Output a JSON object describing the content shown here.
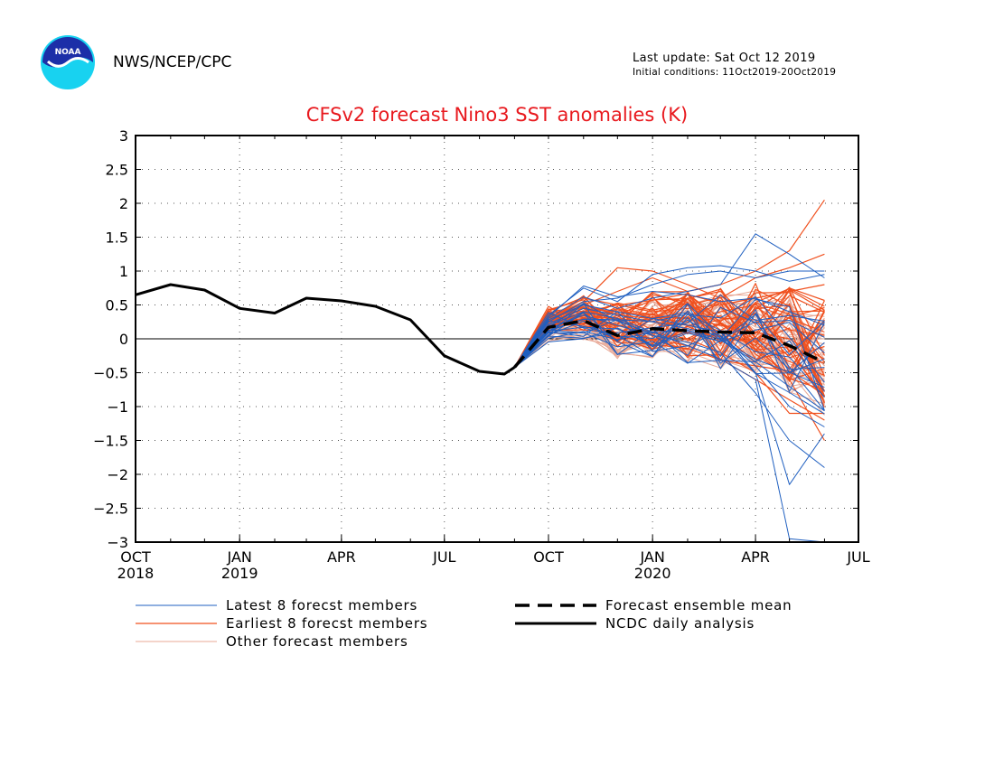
{
  "header": {
    "org": "NWS/NCEP/CPC",
    "logo_text": "NOAA",
    "last_update": "Last update: Sat Oct 12 2019",
    "initial_conditions": "Initial conditions: 11Oct2019-20Oct2019"
  },
  "colors": {
    "latest": "#1f5fc0",
    "earliest": "#f0501e",
    "other": "#e8a896",
    "mean": "#000000",
    "analysis": "#000000",
    "title": "#e8191e"
  },
  "chart_data": {
    "type": "line",
    "title": "CFSv2 forecast Nino3 SST anomalies (K)",
    "xlabel": "",
    "ylabel": "",
    "ylim": [
      -3,
      3
    ],
    "yticks": [
      3,
      2.5,
      2,
      1.5,
      1,
      0.5,
      0,
      -0.5,
      -1,
      -1.5,
      -2,
      -2.5,
      -3
    ],
    "ytick_labels": [
      "3",
      "2.5",
      "2",
      "1.5",
      "1",
      "0.5",
      "0",
      "−0.5",
      "−1",
      "−1.5",
      "−2",
      "−2.5",
      "−3"
    ],
    "xaxis": {
      "start": "2018-10-01",
      "end": "2020-07-01",
      "ticks": [
        {
          "month": "OCT",
          "year": "2018",
          "date": "2018-10-01"
        },
        {
          "month": "JAN",
          "year": "2019",
          "date": "2019-01-01"
        },
        {
          "month": "APR",
          "year": "",
          "date": "2019-04-01"
        },
        {
          "month": "JUL",
          "year": "",
          "date": "2019-07-01"
        },
        {
          "month": "OCT",
          "year": "",
          "date": "2019-10-01"
        },
        {
          "month": "JAN",
          "year": "2020",
          "date": "2020-01-01"
        },
        {
          "month": "APR",
          "year": "",
          "date": "2020-04-01"
        },
        {
          "month": "JUL",
          "year": "",
          "date": "2020-07-01"
        }
      ]
    },
    "grid": true,
    "legend": {
      "placement": "bottom",
      "entries": [
        {
          "label": "Latest 8 forecst members",
          "style": "latest"
        },
        {
          "label": "Earliest 8 forecst members",
          "style": "earliest"
        },
        {
          "label": "Other forecast members",
          "style": "other"
        },
        {
          "label": "Forecast ensemble mean",
          "style": "mean"
        },
        {
          "label": "NCDC daily analysis",
          "style": "analysis"
        }
      ]
    },
    "analysis": {
      "name": "NCDC daily analysis",
      "points": [
        [
          "2018-10-01",
          0.65
        ],
        [
          "2018-11-01",
          0.8
        ],
        [
          "2018-12-01",
          0.72
        ],
        [
          "2019-01-01",
          0.45
        ],
        [
          "2019-02-01",
          0.38
        ],
        [
          "2019-03-01",
          0.6
        ],
        [
          "2019-04-01",
          0.56
        ],
        [
          "2019-05-01",
          0.48
        ],
        [
          "2019-06-01",
          0.28
        ],
        [
          "2019-07-01",
          -0.25
        ],
        [
          "2019-08-01",
          -0.48
        ],
        [
          "2019-08-23",
          -0.52
        ],
        [
          "2019-09-01",
          -0.42
        ]
      ]
    },
    "ensemble_mean": {
      "name": "Forecast ensemble mean",
      "points": [
        [
          "2019-09-01",
          -0.42
        ],
        [
          "2019-10-01",
          0.17
        ],
        [
          "2019-11-01",
          0.27
        ],
        [
          "2019-12-01",
          0.05
        ],
        [
          "2020-01-01",
          0.15
        ],
        [
          "2020-02-01",
          0.12
        ],
        [
          "2020-03-01",
          0.1
        ],
        [
          "2020-04-01",
          0.09
        ],
        [
          "2020-05-01",
          -0.1
        ],
        [
          "2020-06-01",
          -0.35
        ]
      ]
    },
    "forecast_members": {
      "start": "2019-09-01",
      "dates": [
        "2019-09-01",
        "2019-10-01",
        "2019-11-01",
        "2019-12-01",
        "2020-01-01",
        "2020-02-01",
        "2020-03-01",
        "2020-04-01",
        "2020-05-01",
        "2020-06-01"
      ],
      "latest": [
        [
          -0.42,
          0.35,
          0.75,
          0.55,
          0.95,
          1.05,
          1.08,
          1.0,
          0.85,
          0.95
        ],
        [
          -0.42,
          0.3,
          0.62,
          0.45,
          0.6,
          0.7,
          0.8,
          1.55,
          1.25,
          0.9
        ],
        [
          -0.42,
          0.28,
          0.5,
          0.4,
          0.3,
          0.2,
          0.1,
          -0.5,
          -2.15,
          -1.4
        ],
        [
          -0.42,
          0.2,
          0.4,
          0.3,
          0.1,
          -0.1,
          -0.3,
          -0.6,
          -2.95,
          -3.0
        ],
        [
          -0.42,
          0.25,
          0.55,
          0.6,
          0.8,
          0.95,
          1.0,
          0.9,
          1.0,
          1.0
        ],
        [
          -0.42,
          0.15,
          0.35,
          0.2,
          0.05,
          -0.05,
          -0.2,
          -0.8,
          -1.5,
          -1.9
        ],
        [
          -0.42,
          0.32,
          0.78,
          0.62,
          0.7,
          0.65,
          0.55,
          0.6,
          0.4,
          0.2
        ],
        [
          -0.42,
          0.22,
          0.45,
          0.35,
          0.25,
          0.15,
          0.05,
          -0.4,
          -1.0,
          -1.3
        ]
      ],
      "earliest": [
        [
          -0.42,
          0.3,
          0.55,
          1.05,
          1.0,
          0.8,
          0.6,
          0.9,
          1.05,
          1.25
        ],
        [
          -0.42,
          0.25,
          0.5,
          0.7,
          0.9,
          0.7,
          0.8,
          1.0,
          1.3,
          2.05
        ],
        [
          -0.42,
          0.2,
          0.35,
          0.2,
          0.1,
          0.0,
          -0.2,
          -0.5,
          -1.1,
          -1.1
        ],
        [
          -0.42,
          0.22,
          0.4,
          0.3,
          0.25,
          0.2,
          0.1,
          -0.1,
          -0.6,
          -1.5
        ],
        [
          -0.42,
          0.28,
          0.6,
          0.5,
          0.4,
          0.45,
          0.5,
          0.6,
          0.7,
          0.8
        ],
        [
          -0.42,
          0.18,
          0.3,
          0.15,
          0.0,
          -0.1,
          -0.3,
          -0.6,
          -0.9,
          -1.2
        ],
        [
          -0.42,
          0.24,
          0.45,
          0.4,
          0.35,
          0.3,
          0.2,
          0.1,
          0.0,
          -0.3
        ],
        [
          -0.42,
          0.26,
          0.5,
          0.35,
          0.3,
          0.25,
          0.4,
          0.5,
          0.3,
          0.1
        ]
      ]
    }
  }
}
